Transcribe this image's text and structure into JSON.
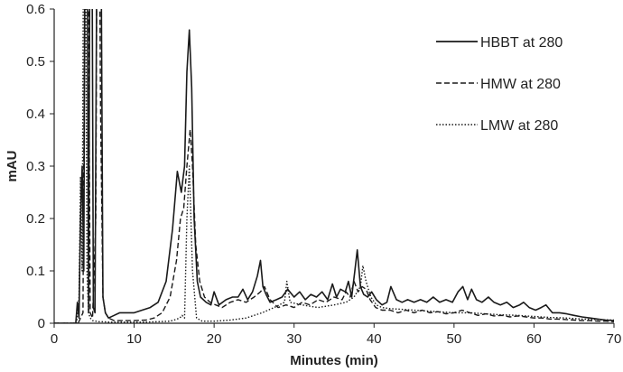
{
  "chart_data": {
    "type": "line",
    "title": "",
    "xlabel": "Minutes (min)",
    "ylabel": "mAU",
    "xlim": [
      0,
      70
    ],
    "ylim": [
      0,
      0.6
    ],
    "xticks": [
      0,
      10,
      20,
      30,
      40,
      50,
      60,
      70
    ],
    "yticks": [
      0,
      0.1,
      0.2,
      0.3,
      0.4,
      0.5,
      0.6
    ],
    "ytick_labels": [
      "0",
      "0.1",
      "0.2",
      "0.3",
      "0.4",
      "0.5",
      "0.6"
    ],
    "grid": false,
    "legend_position": "top-right",
    "series": [
      {
        "name": "HBBT at 280",
        "style": "solid",
        "x": [
          0,
          2.7,
          2.9,
          3.1,
          3.3,
          3.5,
          3.7,
          3.9,
          4.1,
          4.3,
          4.5,
          4.7,
          4.9,
          5.1,
          5.4,
          5.8,
          6.1,
          6.4,
          6.8,
          7.5,
          8.2,
          9,
          10,
          11,
          12,
          13,
          14,
          14.8,
          15.4,
          15.9,
          16.3,
          16.6,
          16.9,
          17.2,
          17.5,
          17.9,
          18.3,
          19,
          19.6,
          20,
          20.6,
          21.5,
          22.3,
          23,
          23.6,
          24.2,
          24.8,
          25.4,
          25.8,
          26.1,
          26.5,
          27,
          27.8,
          28.5,
          29.2,
          30,
          30.7,
          31.4,
          32.1,
          32.8,
          33.5,
          34.2,
          34.8,
          35.3,
          35.8,
          36.4,
          36.8,
          37.2,
          37.6,
          37.9,
          38.3,
          38.7,
          39.2,
          39.7,
          40.3,
          41,
          41.6,
          42.1,
          42.8,
          43.5,
          44.2,
          45,
          45.8,
          46.6,
          47.4,
          48.2,
          49,
          49.8,
          50.5,
          51.1,
          51.7,
          52.2,
          52.8,
          53.5,
          54.3,
          55,
          55.8,
          56.6,
          57.4,
          58.2,
          58.7,
          59.4,
          60.2,
          60.9,
          61.5,
          62.3,
          63.2,
          64.1,
          65,
          66,
          67,
          68,
          69,
          70
        ],
        "y": [
          0,
          0,
          0.04,
          0.01,
          0.2,
          0.3,
          0.1,
          0.9,
          0.9,
          0.02,
          0.9,
          0.9,
          0.03,
          0.02,
          0.9,
          0.9,
          0.05,
          0.02,
          0.01,
          0.015,
          0.02,
          0.02,
          0.02,
          0.025,
          0.03,
          0.04,
          0.08,
          0.18,
          0.29,
          0.25,
          0.3,
          0.48,
          0.56,
          0.45,
          0.2,
          0.08,
          0.05,
          0.04,
          0.035,
          0.06,
          0.035,
          0.045,
          0.05,
          0.05,
          0.065,
          0.045,
          0.06,
          0.09,
          0.12,
          0.07,
          0.055,
          0.04,
          0.045,
          0.05,
          0.065,
          0.05,
          0.06,
          0.045,
          0.055,
          0.05,
          0.06,
          0.045,
          0.075,
          0.05,
          0.065,
          0.06,
          0.08,
          0.05,
          0.1,
          0.14,
          0.07,
          0.055,
          0.05,
          0.06,
          0.045,
          0.035,
          0.04,
          0.07,
          0.045,
          0.04,
          0.045,
          0.04,
          0.045,
          0.04,
          0.05,
          0.04,
          0.045,
          0.04,
          0.06,
          0.07,
          0.045,
          0.065,
          0.045,
          0.04,
          0.05,
          0.04,
          0.035,
          0.04,
          0.03,
          0.035,
          0.04,
          0.03,
          0.025,
          0.03,
          0.035,
          0.02,
          0.02,
          0.018,
          0.015,
          0.012,
          0.01,
          0.008,
          0.006,
          0.005
        ]
      },
      {
        "name": "HMW at 280",
        "style": "dashed",
        "x": [
          0,
          3,
          3.3,
          3.6,
          3.9,
          4.2,
          4.5,
          4.8,
          5.2,
          5.4,
          5.6,
          5.8,
          6.1,
          6.4,
          6.8,
          7.5,
          8.5,
          10,
          11.5,
          12.5,
          13.5,
          14.5,
          15.3,
          15.8,
          16.2,
          16.6,
          17,
          17.3,
          17.7,
          18.2,
          18.8,
          19.5,
          20.2,
          21,
          22,
          23,
          24,
          25,
          25.8,
          26.3,
          27,
          28,
          29,
          30,
          31,
          32,
          33,
          34,
          35,
          36,
          36.5,
          37,
          37.5,
          38,
          38.5,
          39,
          39.5,
          40.2,
          41,
          42,
          43,
          44,
          45,
          46,
          47,
          48,
          49,
          50,
          51,
          52,
          53,
          54,
          55,
          56,
          57,
          58,
          59,
          60,
          61,
          62,
          63,
          64,
          65,
          66,
          67,
          68,
          69,
          70
        ],
        "y": [
          0,
          0,
          0.01,
          0.02,
          0.9,
          0.9,
          0.02,
          0.01,
          0.2,
          0.9,
          0.9,
          0.4,
          0.05,
          0.02,
          0.01,
          0.005,
          0.005,
          0.005,
          0.006,
          0.01,
          0.02,
          0.05,
          0.12,
          0.2,
          0.22,
          0.3,
          0.37,
          0.3,
          0.15,
          0.08,
          0.05,
          0.04,
          0.035,
          0.03,
          0.04,
          0.045,
          0.04,
          0.05,
          0.06,
          0.07,
          0.045,
          0.03,
          0.035,
          0.03,
          0.04,
          0.035,
          0.045,
          0.04,
          0.05,
          0.045,
          0.06,
          0.05,
          0.08,
          0.06,
          0.07,
          0.065,
          0.045,
          0.03,
          0.025,
          0.025,
          0.02,
          0.025,
          0.02,
          0.025,
          0.02,
          0.022,
          0.018,
          0.02,
          0.025,
          0.02,
          0.015,
          0.018,
          0.014,
          0.015,
          0.012,
          0.014,
          0.012,
          0.01,
          0.01,
          0.008,
          0.008,
          0.007,
          0.006,
          0.005,
          0.005,
          0.004,
          0.004,
          0.003
        ]
      },
      {
        "name": "LMW at 280",
        "style": "dotted",
        "x": [
          0,
          2.8,
          3.1,
          3.3,
          3.5,
          3.7,
          3.9,
          4.1,
          4.3,
          4.5,
          4.8,
          5.2,
          5.6,
          6,
          7,
          9,
          11,
          13,
          14.5,
          15.2,
          15.7,
          16,
          16.3,
          16.6,
          16.9,
          17.3,
          17.8,
          18.5,
          20,
          22,
          24,
          26,
          27.5,
          28.8,
          29.1,
          29.5,
          31,
          33,
          35,
          36.5,
          37.5,
          38.3,
          38.6,
          39,
          39.6,
          40.3,
          41,
          42,
          44,
          46,
          48,
          50,
          52,
          54,
          56,
          58,
          60,
          62,
          64,
          66,
          68,
          70
        ],
        "y": [
          0,
          0,
          0.05,
          0.28,
          0.1,
          0.9,
          0.9,
          0.1,
          0.02,
          0.01,
          0.005,
          0.004,
          0.003,
          0.003,
          0.002,
          0.002,
          0.002,
          0.003,
          0.004,
          0.007,
          0.01,
          0.015,
          0.01,
          0.2,
          0.3,
          0.1,
          0.01,
          0.004,
          0.004,
          0.006,
          0.01,
          0.02,
          0.03,
          0.04,
          0.08,
          0.04,
          0.035,
          0.03,
          0.035,
          0.04,
          0.05,
          0.07,
          0.11,
          0.08,
          0.05,
          0.035,
          0.03,
          0.028,
          0.026,
          0.024,
          0.022,
          0.02,
          0.02,
          0.018,
          0.016,
          0.015,
          0.013,
          0.011,
          0.01,
          0.008,
          0.007,
          0.006
        ]
      }
    ]
  }
}
